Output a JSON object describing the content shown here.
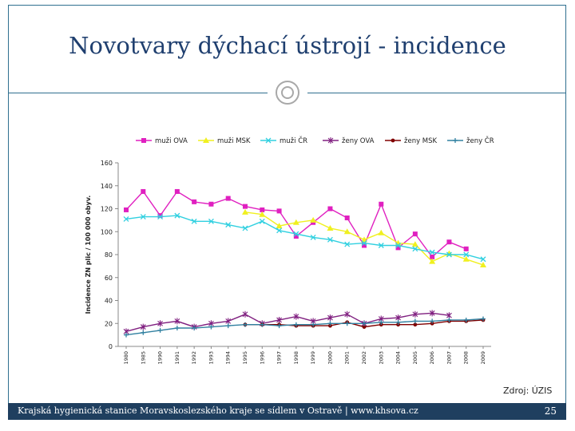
{
  "slide": {
    "title": "Novotvary dýchací ústrojí - incidence",
    "source": "Zdroj: ÚZIS",
    "footer": "Krajská hygienická stanice Moravskoslezského kraje se sídlem v Ostravě | www.khsova.cz",
    "page": "25"
  },
  "chart_data": {
    "type": "line",
    "title": "",
    "xlabel": "",
    "ylabel": "Incidence ZN plic / 100 000 obyv.",
    "ylim": [
      0,
      160
    ],
    "yticks": [
      0,
      20,
      40,
      60,
      80,
      100,
      120,
      140,
      160
    ],
    "grid": false,
    "legend_position": "top",
    "categories": [
      "1980",
      "1985",
      "1990",
      "1991",
      "1992",
      "1993",
      "1994",
      "1995",
      "1996",
      "1997",
      "1998",
      "1999",
      "2000",
      "2001",
      "2002",
      "2003",
      "2004",
      "2005",
      "2006",
      "2007",
      "2008",
      "2009"
    ],
    "series": [
      {
        "name": "muži OVA",
        "color": "#e020c0",
        "marker": "square",
        "values": [
          119,
          135,
          114,
          135,
          126,
          124,
          129,
          122,
          119,
          118,
          96,
          108,
          120,
          112,
          88,
          124,
          86,
          98,
          78,
          91,
          85,
          null
        ]
      },
      {
        "name": "muži MSK",
        "color": "#f0f020",
        "marker": "triangle",
        "values": [
          null,
          null,
          null,
          null,
          null,
          null,
          null,
          117,
          115,
          105,
          108,
          110,
          103,
          100,
          93,
          99,
          90,
          89,
          74,
          81,
          76,
          71
        ]
      },
      {
        "name": "muži ČR",
        "color": "#30d0e0",
        "marker": "x",
        "values": [
          111,
          113,
          113,
          114,
          109,
          109,
          106,
          103,
          109,
          101,
          98,
          95,
          93,
          89,
          90,
          88,
          88,
          85,
          82,
          80,
          80,
          76
        ]
      },
      {
        "name": "ženy OVA",
        "color": "#802080",
        "marker": "star",
        "values": [
          13,
          17,
          20,
          22,
          17,
          20,
          22,
          28,
          20,
          23,
          26,
          22,
          25,
          28,
          20,
          24,
          25,
          28,
          29,
          27,
          null,
          null
        ]
      },
      {
        "name": "ženy MSK",
        "color": "#800000",
        "marker": "circle",
        "values": [
          null,
          null,
          null,
          null,
          null,
          null,
          null,
          19,
          19,
          19,
          18,
          18,
          18,
          21,
          17,
          19,
          19,
          19,
          20,
          22,
          22,
          23
        ]
      },
      {
        "name": "ženy ČR",
        "color": "#3080a0",
        "marker": "plus",
        "values": [
          10,
          12,
          14,
          16,
          16,
          17,
          18,
          19,
          19,
          18,
          19,
          19,
          20,
          20,
          20,
          21,
          21,
          22,
          22,
          23,
          23,
          24
        ]
      }
    ]
  }
}
